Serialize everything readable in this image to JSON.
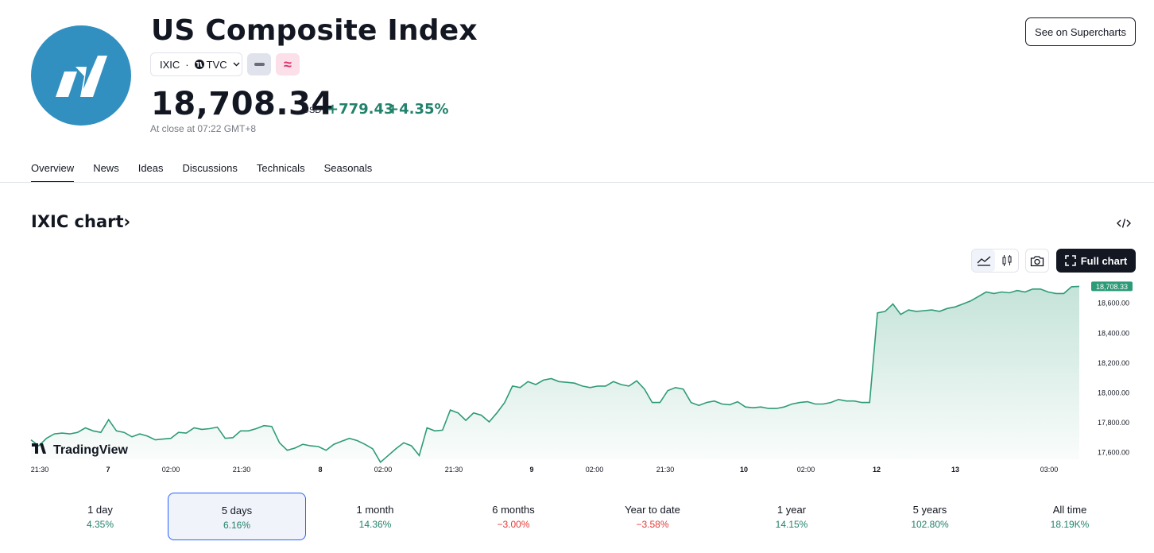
{
  "header": {
    "title": "US Composite Index",
    "symbol": "IXIC",
    "separator": "·",
    "exchange": "TVC",
    "price": "18,708.34",
    "currency": "USD",
    "change": "+779.43",
    "change_pct": "+4.35%",
    "close_time": "At close at 07:22 GMT+8",
    "supercharts_button": "See on Supercharts",
    "badge_pink": "≈"
  },
  "tabs": [
    "Overview",
    "News",
    "Ideas",
    "Discussions",
    "Technicals",
    "Seasonals"
  ],
  "chart_section": {
    "title": "IXIC chart",
    "title_arrow": "›",
    "full_chart_label": "Full chart",
    "watermark": "TradingView"
  },
  "chart_data": {
    "type": "area",
    "y_ticks": [
      "17,600.00",
      "17,800.00",
      "18,000.00",
      "18,200.00",
      "18,400.00",
      "18,600.00"
    ],
    "y_range": [
      17550,
      18710
    ],
    "last_price_label": "18,708.33",
    "x_ticks": [
      "21:30",
      "7",
      "02:00",
      "21:30",
      "8",
      "02:00",
      "21:30",
      "9",
      "02:00",
      "21:30",
      "10",
      "02:00",
      "12",
      "13",
      "03:00"
    ],
    "values": [
      17680,
      17640,
      17690,
      17720,
      17725,
      17720,
      17730,
      17760,
      17740,
      17730,
      17815,
      17740,
      17730,
      17700,
      17720,
      17705,
      17680,
      17685,
      17690,
      17730,
      17725,
      17760,
      17750,
      17755,
      17765,
      17690,
      17695,
      17740,
      17740,
      17755,
      17775,
      17770,
      17660,
      17610,
      17625,
      17650,
      17640,
      17635,
      17610,
      17650,
      17670,
      17690,
      17675,
      17650,
      17620,
      17530,
      17575,
      17620,
      17660,
      17640,
      17575,
      17760,
      17740,
      17745,
      17880,
      17860,
      17810,
      17860,
      17845,
      17800,
      17860,
      17930,
      18040,
      18030,
      18070,
      18050,
      18080,
      18090,
      18070,
      18065,
      18060,
      18040,
      18030,
      18040,
      18040,
      18070,
      18050,
      18040,
      18075,
      18020,
      17930,
      17930,
      18010,
      18030,
      18020,
      17930,
      17910,
      17930,
      17940,
      17920,
      17915,
      17935,
      17900,
      17895,
      17900,
      17890,
      17890,
      17900,
      17920,
      17930,
      17935,
      17920,
      17920,
      17930,
      17950,
      17940,
      17940,
      17930,
      17930,
      18530,
      18540,
      18590,
      18520,
      18550,
      18540,
      18545,
      18550,
      18540,
      18560,
      18570,
      18590,
      18610,
      18640,
      18670,
      18660,
      18670,
      18665,
      18680,
      18670,
      18690,
      18690,
      18670,
      18660,
      18660,
      18705,
      18708
    ]
  },
  "periods": [
    {
      "label": "1 day",
      "value": "4.35%",
      "sign": "pos"
    },
    {
      "label": "5 days",
      "value": "6.16%",
      "sign": "pos",
      "selected": true
    },
    {
      "label": "1 month",
      "value": "14.36%",
      "sign": "pos"
    },
    {
      "label": "6 months",
      "value": "−3.00%",
      "sign": "neg"
    },
    {
      "label": "Year to date",
      "value": "−3.58%",
      "sign": "neg"
    },
    {
      "label": "1 year",
      "value": "14.15%",
      "sign": "pos"
    },
    {
      "label": "5 years",
      "value": "102.80%",
      "sign": "pos"
    },
    {
      "label": "All time",
      "value": "18.19K%",
      "sign": "pos"
    }
  ],
  "colors": {
    "accent_green": "#22826b",
    "negative_red": "#e53935",
    "line": "#2e9b78",
    "logo_bg": "#3290c0"
  }
}
